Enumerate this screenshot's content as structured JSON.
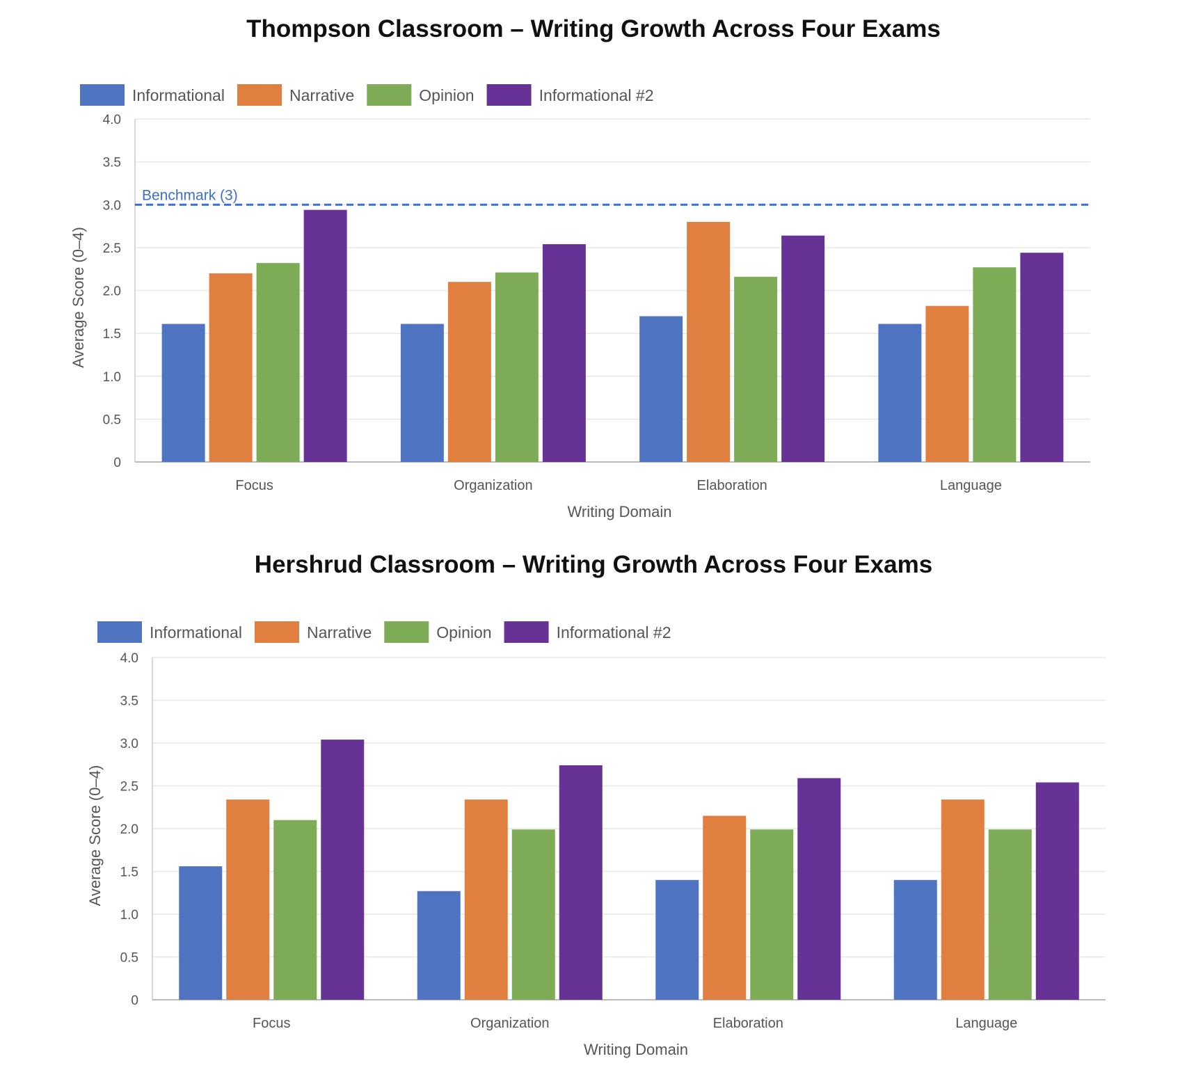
{
  "chart_data": [
    {
      "type": "bar",
      "title": "Thompson Classroom – Writing Growth Across Four Exams",
      "xlabel": "Writing Domain",
      "ylabel": "Average Score (0–4)",
      "ylim": [
        0,
        4
      ],
      "yticks": [
        "0",
        "0.5",
        "1.0",
        "1.5",
        "2.0",
        "2.5",
        "3.0",
        "3.5",
        "4.0"
      ],
      "grid": true,
      "legend_position": "top-left",
      "categories": [
        "Focus",
        "Organization",
        "Elaboration",
        "Language"
      ],
      "series": [
        {
          "name": "Informational",
          "color": "#4f74c2",
          "values": [
            1.61,
            1.61,
            1.7,
            1.61
          ]
        },
        {
          "name": "Narrative",
          "color": "#e07f3f",
          "values": [
            2.2,
            2.1,
            2.8,
            1.82
          ]
        },
        {
          "name": "Opinion",
          "color": "#7eab55",
          "values": [
            2.32,
            2.21,
            2.16,
            2.27
          ]
        },
        {
          "name": "Informational #2",
          "color": "#673296",
          "values": [
            2.94,
            2.54,
            2.64,
            2.44
          ]
        }
      ],
      "benchmark": {
        "value": 3,
        "label": "Benchmark (3)",
        "color": "#3a6fd0"
      }
    },
    {
      "type": "bar",
      "title": "Hershrud Classroom – Writing Growth Across Four Exams",
      "xlabel": "Writing Domain",
      "ylabel": "Average Score (0–4)",
      "ylim": [
        0,
        4
      ],
      "yticks": [
        "0",
        "0.5",
        "1.0",
        "1.5",
        "2.0",
        "2.5",
        "3.0",
        "3.5",
        "4.0"
      ],
      "grid": true,
      "legend_position": "top-left",
      "categories": [
        "Focus",
        "Organization",
        "Elaboration",
        "Language"
      ],
      "series": [
        {
          "name": "Informational",
          "color": "#4f74c2",
          "values": [
            1.56,
            1.27,
            1.4,
            1.4
          ]
        },
        {
          "name": "Narrative",
          "color": "#e07f3f",
          "values": [
            2.34,
            2.34,
            2.15,
            2.34
          ]
        },
        {
          "name": "Opinion",
          "color": "#7eab55",
          "values": [
            2.1,
            1.99,
            1.99,
            1.99
          ]
        },
        {
          "name": "Informational #2",
          "color": "#673296",
          "values": [
            3.04,
            2.74,
            2.59,
            2.54
          ]
        }
      ]
    }
  ]
}
